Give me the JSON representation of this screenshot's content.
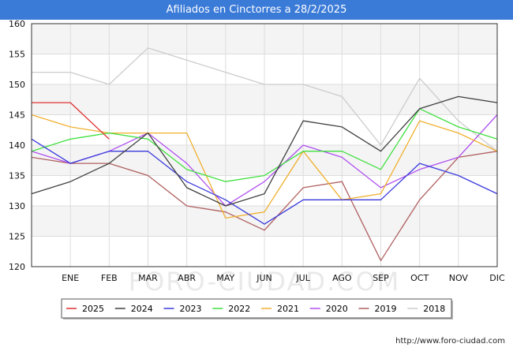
{
  "title": "Afiliados en Cinctorres a 28/2/2025",
  "footer_url": "http://www.foro-ciudad.com",
  "watermark": "FORO-CIUDAD.COM",
  "chart_data": {
    "type": "line",
    "x": [
      "",
      "ENE",
      "FEB",
      "MAR",
      "ABR",
      "MAY",
      "JUN",
      "JUL",
      "AGO",
      "SEP",
      "OCT",
      "NOV",
      "DIC"
    ],
    "ylim": [
      120,
      160
    ],
    "yticks": [
      120,
      125,
      130,
      135,
      140,
      145,
      150,
      155,
      160
    ],
    "grid": true,
    "legend_position": "bottom",
    "series": [
      {
        "name": "2025",
        "color": "#e03030",
        "values": [
          147,
          147,
          141,
          null,
          null,
          null,
          null,
          null,
          null,
          null,
          null,
          null,
          null
        ]
      },
      {
        "name": "2024",
        "color": "#404040",
        "values": [
          132,
          134,
          137,
          142,
          133,
          130,
          132,
          144,
          143,
          139,
          146,
          148,
          147
        ]
      },
      {
        "name": "2023",
        "color": "#3a3adc",
        "values": [
          141,
          137,
          139,
          139,
          134,
          131,
          127,
          131,
          131,
          131,
          137,
          135,
          132
        ]
      },
      {
        "name": "2022",
        "color": "#40e040",
        "values": [
          139,
          141,
          142,
          141,
          136,
          134,
          135,
          139,
          139,
          136,
          146,
          143,
          141
        ]
      },
      {
        "name": "2021",
        "color": "#f0b030",
        "values": [
          145,
          143,
          142,
          142,
          142,
          128,
          129,
          139,
          131,
          132,
          144,
          142,
          139
        ]
      },
      {
        "name": "2020",
        "color": "#b050f0",
        "values": [
          139,
          137,
          139,
          142,
          137,
          130,
          134,
          140,
          138,
          133,
          136,
          138,
          145
        ]
      },
      {
        "name": "2019",
        "color": "#b06060",
        "values": [
          138,
          137,
          137,
          135,
          130,
          129,
          126,
          133,
          134,
          121,
          131,
          138,
          139
        ]
      },
      {
        "name": "2018",
        "color": "#cccccc",
        "values": [
          152,
          152,
          150,
          156,
          154,
          152,
          150,
          150,
          148,
          140,
          151,
          144,
          139
        ]
      }
    ]
  }
}
